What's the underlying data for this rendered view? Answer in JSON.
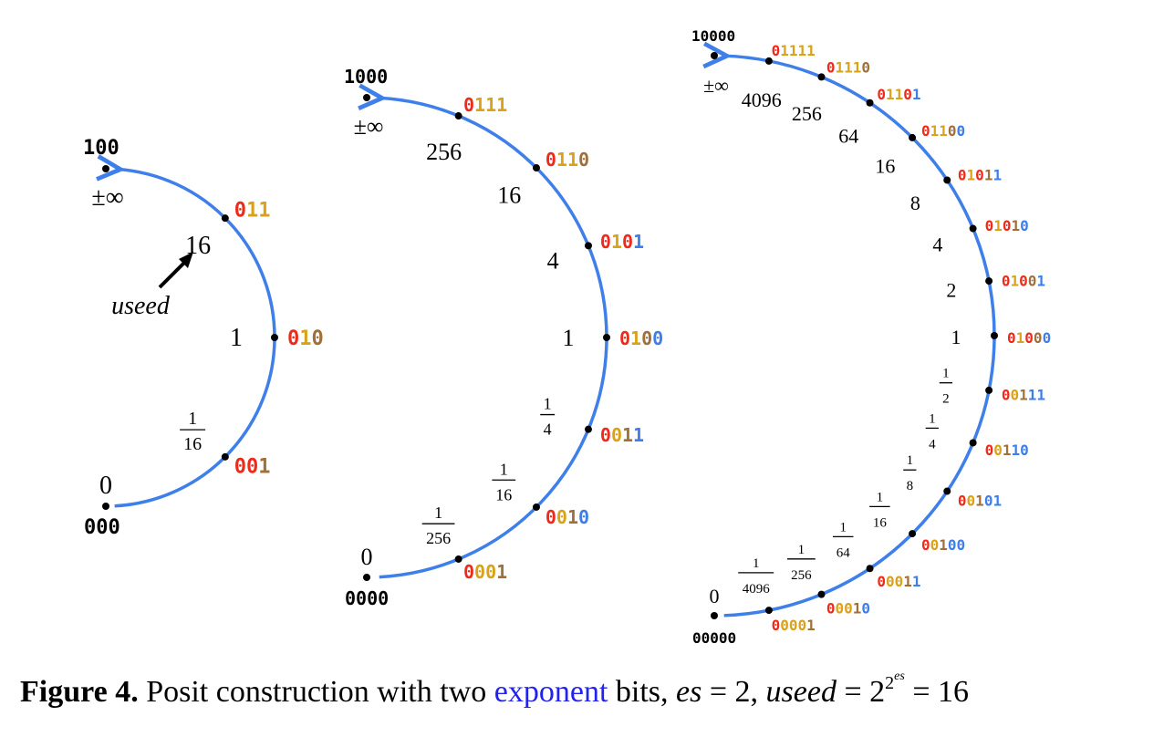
{
  "colors": {
    "sign": "#ee2a1b",
    "regime": "#d9a21a",
    "exponent_a": "#a0703a",
    "exponent": "#3d7eec",
    "arc": "#3f7fe9",
    "text": "#000000"
  },
  "caption": {
    "figure": "Figure 4.",
    "text1": " Posit construction with two ",
    "link": "exponent",
    "text2": " bits, ",
    "es1": "es",
    "eq1": " = 2, ",
    "useed": "useed",
    "eq2": " = 2",
    "sup_base": "2",
    "sup_es": "es",
    "eq3": " = 16"
  },
  "diagrams": [
    {
      "id": "3bit",
      "top_bits": "100",
      "infinity": "±∞",
      "zero_label": "0",
      "bottom_bits": "000",
      "useed_label": "useed",
      "points": [
        {
          "value": "16",
          "bits": [
            {
              "c": "sign",
              "t": "0"
            },
            {
              "c": "regime",
              "t": "11"
            }
          ]
        },
        {
          "value": "1",
          "bits": [
            {
              "c": "sign",
              "t": "0"
            },
            {
              "c": "regime",
              "t": "1"
            },
            {
              "c": "exponent_a",
              "t": "0"
            }
          ]
        },
        {
          "value_num": "1",
          "value_den": "16",
          "bits": [
            {
              "c": "sign",
              "t": "0"
            },
            {
              "c": "sign",
              "t": "0"
            },
            {
              "c": "exponent_a",
              "t": "1"
            }
          ]
        }
      ]
    },
    {
      "id": "4bit",
      "top_bits": "1000",
      "infinity": "±∞",
      "zero_label": "0",
      "bottom_bits": "0000",
      "points": [
        {
          "value": "256",
          "bits": [
            {
              "c": "sign",
              "t": "0"
            },
            {
              "c": "regime",
              "t": "111"
            }
          ]
        },
        {
          "value": "16",
          "bits": [
            {
              "c": "sign",
              "t": "0"
            },
            {
              "c": "regime",
              "t": "11"
            },
            {
              "c": "exponent_a",
              "t": "0"
            }
          ]
        },
        {
          "value": "4",
          "bits": [
            {
              "c": "sign",
              "t": "0"
            },
            {
              "c": "regime",
              "t": "1"
            },
            {
              "c": "sign",
              "t": "0"
            },
            {
              "c": "exponent",
              "t": "1"
            }
          ]
        },
        {
          "value": "1",
          "bits": [
            {
              "c": "sign",
              "t": "0"
            },
            {
              "c": "regime",
              "t": "1"
            },
            {
              "c": "exponent_a",
              "t": "0"
            },
            {
              "c": "exponent",
              "t": "0"
            }
          ]
        },
        {
          "value_num": "1",
          "value_den": "4",
          "bits": [
            {
              "c": "sign",
              "t": "0"
            },
            {
              "c": "regime",
              "t": "0"
            },
            {
              "c": "exponent_a",
              "t": "1"
            },
            {
              "c": "exponent",
              "t": "1"
            }
          ]
        },
        {
          "value_num": "1",
          "value_den": "16",
          "bits": [
            {
              "c": "sign",
              "t": "0"
            },
            {
              "c": "regime",
              "t": "0"
            },
            {
              "c": "exponent_a",
              "t": "1"
            },
            {
              "c": "exponent",
              "t": "0"
            }
          ]
        },
        {
          "value_num": "1",
          "value_den": "256",
          "bits": [
            {
              "c": "sign",
              "t": "0"
            },
            {
              "c": "regime",
              "t": "00"
            },
            {
              "c": "exponent_a",
              "t": "1"
            }
          ]
        }
      ]
    },
    {
      "id": "5bit",
      "top_bits": "10000",
      "infinity": "±∞",
      "zero_label": "0",
      "bottom_bits": "00000",
      "points": [
        {
          "value": "4096",
          "bits": [
            {
              "c": "sign",
              "t": "0"
            },
            {
              "c": "regime",
              "t": "1111"
            }
          ]
        },
        {
          "value": "256",
          "bits": [
            {
              "c": "sign",
              "t": "0"
            },
            {
              "c": "regime",
              "t": "111"
            },
            {
              "c": "exponent_a",
              "t": "0"
            }
          ]
        },
        {
          "value": "64",
          "bits": [
            {
              "c": "sign",
              "t": "0"
            },
            {
              "c": "regime",
              "t": "11"
            },
            {
              "c": "sign",
              "t": "0"
            },
            {
              "c": "exponent",
              "t": "1"
            }
          ]
        },
        {
          "value": "16",
          "bits": [
            {
              "c": "sign",
              "t": "0"
            },
            {
              "c": "regime",
              "t": "11"
            },
            {
              "c": "exponent_a",
              "t": "0"
            },
            {
              "c": "exponent",
              "t": "0"
            }
          ]
        },
        {
          "value": "8",
          "bits": [
            {
              "c": "sign",
              "t": "0"
            },
            {
              "c": "regime",
              "t": "1"
            },
            {
              "c": "sign",
              "t": "0"
            },
            {
              "c": "exponent_a",
              "t": "1"
            },
            {
              "c": "exponent",
              "t": "1"
            }
          ]
        },
        {
          "value": "4",
          "bits": [
            {
              "c": "sign",
              "t": "0"
            },
            {
              "c": "regime",
              "t": "1"
            },
            {
              "c": "sign",
              "t": "0"
            },
            {
              "c": "exponent_a",
              "t": "1"
            },
            {
              "c": "exponent",
              "t": "0"
            }
          ]
        },
        {
          "value": "2",
          "bits": [
            {
              "c": "sign",
              "t": "0"
            },
            {
              "c": "regime",
              "t": "1"
            },
            {
              "c": "sign",
              "t": "0"
            },
            {
              "c": "exponent_a",
              "t": "0"
            },
            {
              "c": "exponent",
              "t": "1"
            }
          ]
        },
        {
          "value": "1",
          "bits": [
            {
              "c": "sign",
              "t": "0"
            },
            {
              "c": "regime",
              "t": "1"
            },
            {
              "c": "sign",
              "t": "0"
            },
            {
              "c": "exponent_a",
              "t": "0"
            },
            {
              "c": "exponent",
              "t": "0"
            }
          ]
        },
        {
          "value_num": "1",
          "value_den": "2",
          "bits": [
            {
              "c": "sign",
              "t": "0"
            },
            {
              "c": "regime",
              "t": "0"
            },
            {
              "c": "exponent_a",
              "t": "1"
            },
            {
              "c": "exponent",
              "t": "11"
            }
          ]
        },
        {
          "value_num": "1",
          "value_den": "4",
          "bits": [
            {
              "c": "sign",
              "t": "0"
            },
            {
              "c": "regime",
              "t": "0"
            },
            {
              "c": "exponent_a",
              "t": "1"
            },
            {
              "c": "exponent",
              "t": "10"
            }
          ]
        },
        {
          "value_num": "1",
          "value_den": "8",
          "bits": [
            {
              "c": "sign",
              "t": "0"
            },
            {
              "c": "regime",
              "t": "0"
            },
            {
              "c": "exponent_a",
              "t": "1"
            },
            {
              "c": "exponent",
              "t": "01"
            }
          ]
        },
        {
          "value_num": "1",
          "value_den": "16",
          "bits": [
            {
              "c": "sign",
              "t": "0"
            },
            {
              "c": "regime",
              "t": "0"
            },
            {
              "c": "exponent_a",
              "t": "1"
            },
            {
              "c": "exponent",
              "t": "00"
            }
          ]
        },
        {
          "value_num": "1",
          "value_den": "64",
          "bits": [
            {
              "c": "sign",
              "t": "0"
            },
            {
              "c": "regime",
              "t": "00"
            },
            {
              "c": "exponent_a",
              "t": "1"
            },
            {
              "c": "exponent",
              "t": "1"
            }
          ]
        },
        {
          "value_num": "1",
          "value_den": "256",
          "bits": [
            {
              "c": "sign",
              "t": "0"
            },
            {
              "c": "regime",
              "t": "00"
            },
            {
              "c": "exponent_a",
              "t": "1"
            },
            {
              "c": "exponent",
              "t": "0"
            }
          ]
        },
        {
          "value_num": "1",
          "value_den": "4096",
          "bits": [
            {
              "c": "sign",
              "t": "0"
            },
            {
              "c": "regime",
              "t": "000"
            },
            {
              "c": "exponent_a",
              "t": "1"
            }
          ]
        }
      ]
    }
  ]
}
